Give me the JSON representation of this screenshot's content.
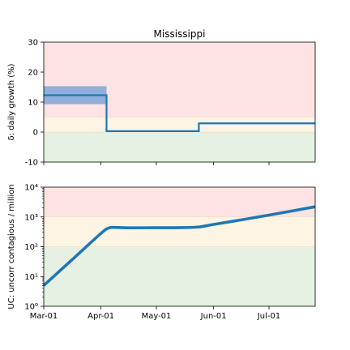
{
  "chart_data": [
    {
      "type": "line",
      "title": "Mississippi",
      "ylabel": "δ: daily growth (%)",
      "ylim": [
        -10,
        30
      ],
      "yticks": [
        -10,
        0,
        10,
        20,
        30
      ],
      "xticks": [
        "Mar-01",
        "Apr-01",
        "May-01",
        "Jun-01",
        "Jul-01"
      ],
      "bands": [
        {
          "from": 5,
          "to": 30,
          "color": "#fde3e3"
        },
        {
          "from": 0,
          "to": 5,
          "color": "#fdf4e4"
        },
        {
          "from": -10,
          "to": 0,
          "color": "#e6f0e3"
        }
      ],
      "series": [
        {
          "color": "#1f77b4",
          "points": [
            [
              "2020-03-01",
              12.3
            ],
            [
              "2020-04-04",
              12.3
            ],
            [
              "2020-04-04",
              0.3
            ],
            [
              "2020-05-24",
              0.3
            ],
            [
              "2020-05-24",
              2.9
            ],
            [
              "2020-07-26",
              2.9
            ]
          ]
        }
      ],
      "uncertainty": {
        "x_from": "2020-03-01",
        "x_to": "2020-04-04",
        "y_from": 9.3,
        "y_to": 15.3,
        "color": "#7ea6d8"
      }
    },
    {
      "type": "line",
      "ylabel": "UC: uncorr contagious / million",
      "yscale": "log",
      "ylim": [
        1,
        10000
      ],
      "yticks": [
        "10⁰",
        "10¹",
        "10²",
        "10³",
        "10⁴"
      ],
      "xticks": [
        "Mar-01",
        "Apr-01",
        "May-01",
        "Jun-01",
        "Jul-01"
      ],
      "bands": [
        {
          "from": 1000,
          "to": 10000,
          "color": "#fde3e3"
        },
        {
          "from": 100,
          "to": 1000,
          "color": "#fdf4e4"
        },
        {
          "from": 1,
          "to": 100,
          "color": "#e6f0e3"
        }
      ],
      "series": [
        {
          "color": "#1f77b4",
          "points": [
            [
              "2020-03-01",
              5
            ],
            [
              "2020-03-16",
              35
            ],
            [
              "2020-04-01",
              280
            ],
            [
              "2020-04-05",
              420
            ],
            [
              "2020-04-08",
              445
            ],
            [
              "2020-04-15",
              430
            ],
            [
              "2020-05-01",
              435
            ],
            [
              "2020-05-15",
              438
            ],
            [
              "2020-05-24",
              460
            ],
            [
              "2020-06-01",
              560
            ],
            [
              "2020-06-15",
              780
            ],
            [
              "2020-07-01",
              1150
            ],
            [
              "2020-07-15",
              1650
            ],
            [
              "2020-07-26",
              2200
            ]
          ]
        }
      ]
    }
  ]
}
